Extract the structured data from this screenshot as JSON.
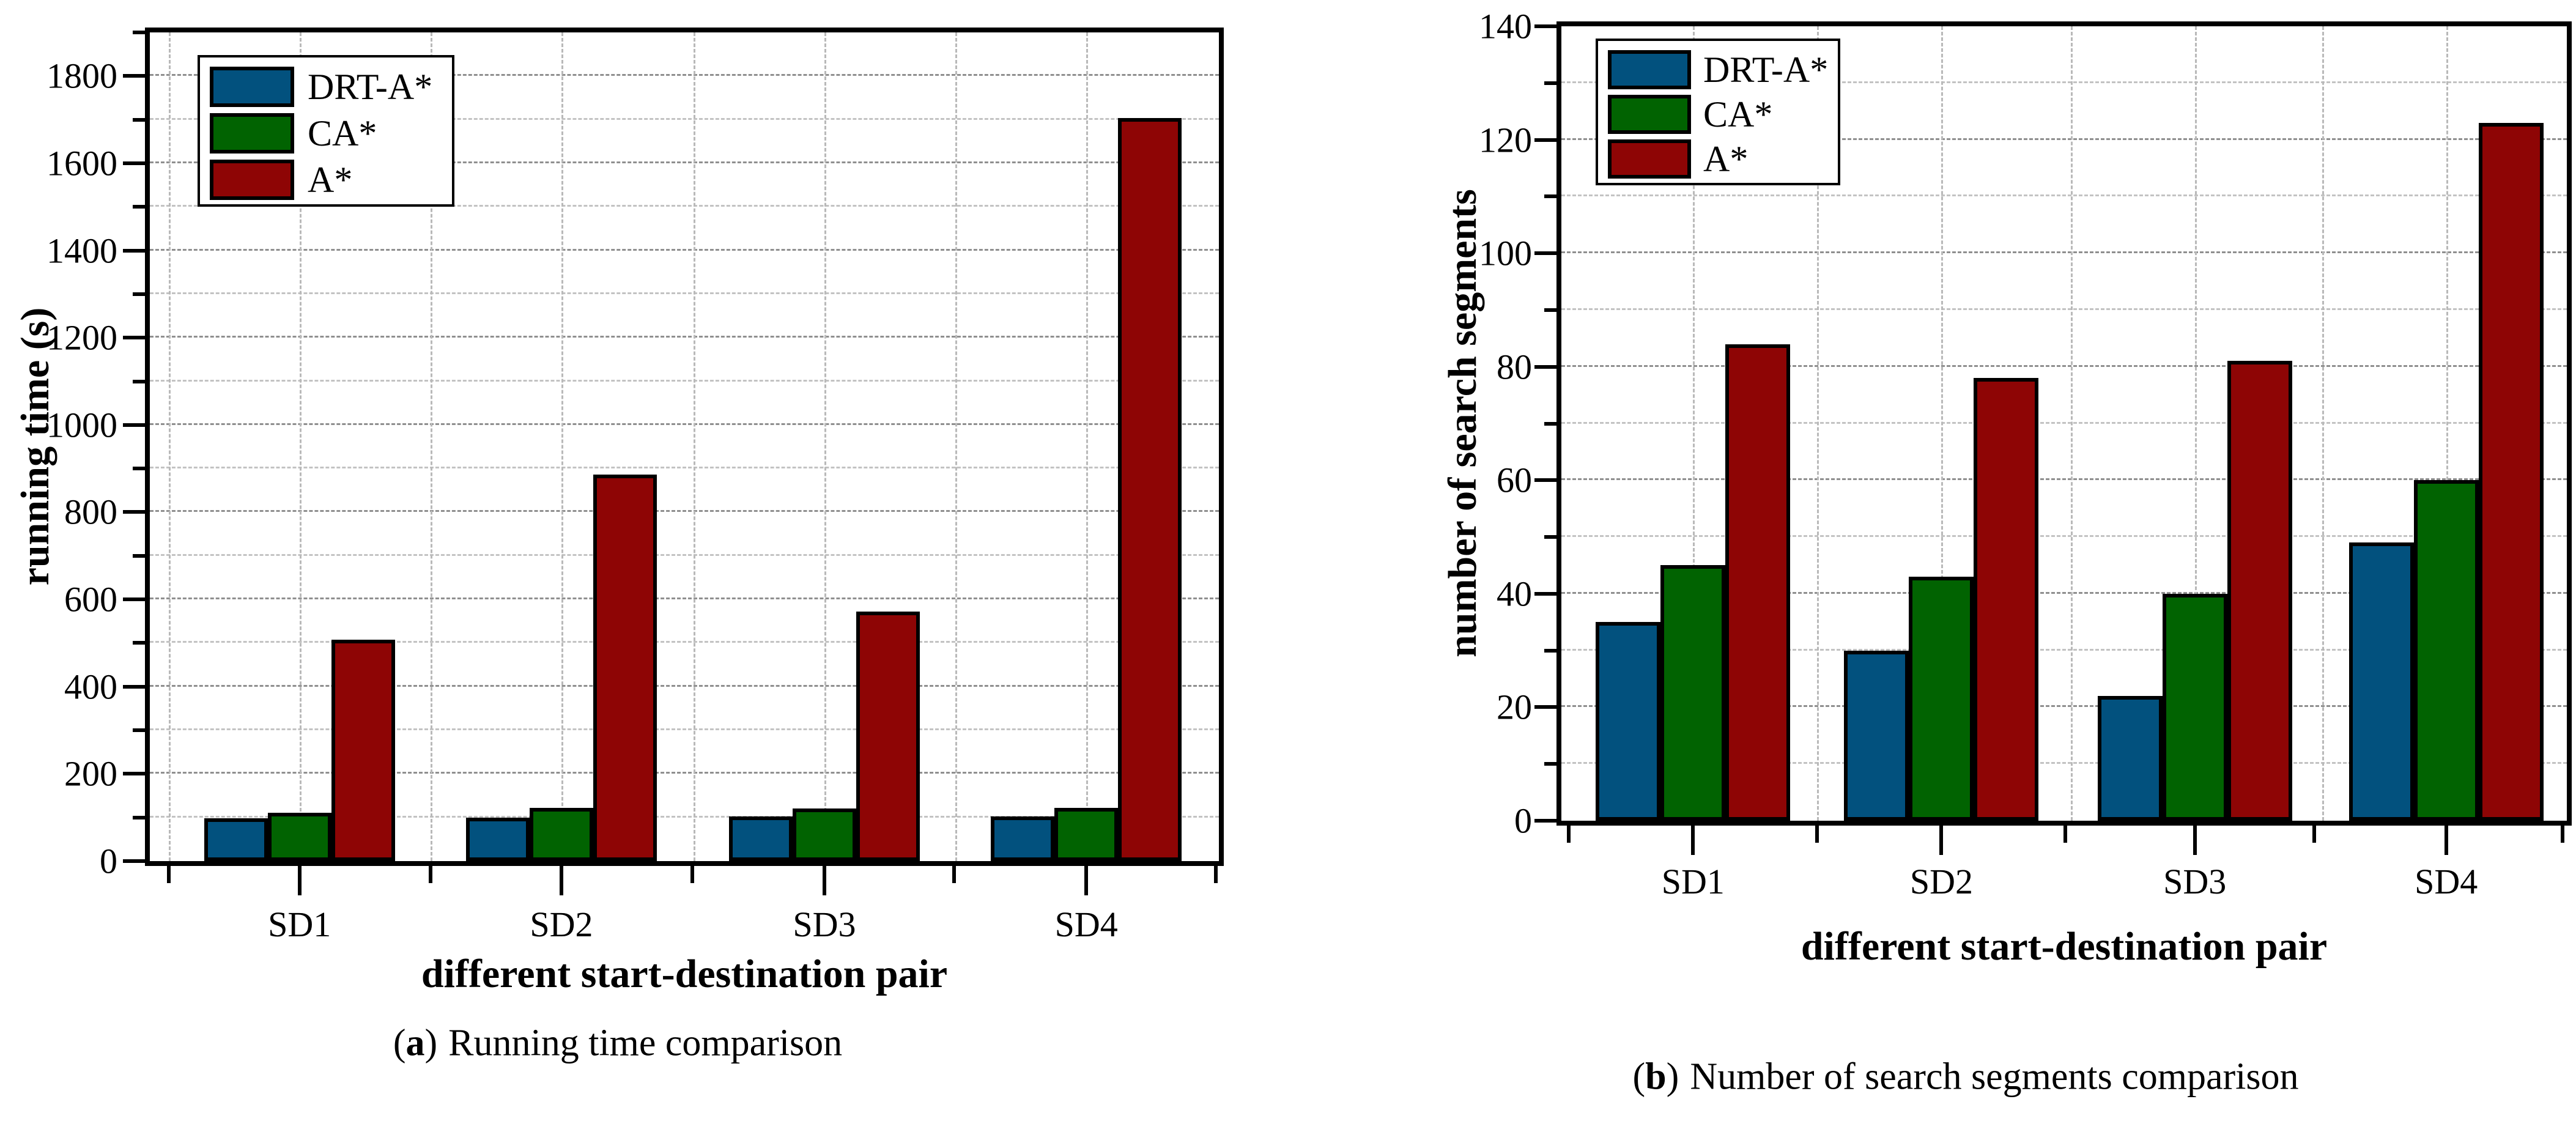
{
  "figure": {
    "background": "#ffffff",
    "text_color": "#000000"
  },
  "chart_data": [
    {
      "type": "bar",
      "cap_open": "(",
      "cap_letter": "a",
      "cap_close": ")",
      "caption": "Running time comparison",
      "xlabel": "different start-destination pair",
      "ylabel": "running time (s)",
      "categories": [
        "SD1",
        "SD2",
        "SD3",
        "SD4"
      ],
      "series": [
        {
          "name": "DRT-A*",
          "color": "#02517e",
          "values": [
            98,
            100,
            103,
            103
          ]
        },
        {
          "name": "CA*",
          "color": "#016301",
          "values": [
            111,
            122,
            120,
            122
          ]
        },
        {
          "name": "A*",
          "color": "#8e0505",
          "values": [
            508,
            886,
            572,
            1704
          ]
        }
      ],
      "ylim": [
        0,
        1900
      ],
      "ytick_major": 200,
      "ytick_minor": 100,
      "ytick_labels": [
        "0",
        "200",
        "400",
        "600",
        "800",
        "1000",
        "1200",
        "1400",
        "1600",
        "1800"
      ],
      "grid": true,
      "legend_position": "upper left",
      "legend_entries": [
        "DRT-A*",
        "CA*",
        "A*"
      ]
    },
    {
      "type": "bar",
      "cap_open": "(",
      "cap_letter": "b",
      "cap_close": ")",
      "caption": "Number of search segments comparison",
      "xlabel": "different start-destination pair",
      "ylabel": "number of search segments",
      "categories": [
        "SD1",
        "SD2",
        "SD3",
        "SD4"
      ],
      "series": [
        {
          "name": "DRT-A*",
          "color": "#02517e",
          "values": [
            35,
            30,
            22,
            49
          ]
        },
        {
          "name": "CA*",
          "color": "#016301",
          "values": [
            45,
            43,
            40,
            60
          ]
        },
        {
          "name": "A*",
          "color": "#8e0505",
          "values": [
            84,
            78,
            81,
            123
          ]
        }
      ],
      "ylim": [
        0,
        140
      ],
      "ytick_major": 20,
      "ytick_minor": 10,
      "ytick_labels": [
        "0",
        "20",
        "40",
        "60",
        "80",
        "100",
        "120",
        "140"
      ],
      "grid": true,
      "legend_position": "upper left",
      "legend_entries": [
        "DRT-A*",
        "CA*",
        "A*"
      ]
    }
  ]
}
